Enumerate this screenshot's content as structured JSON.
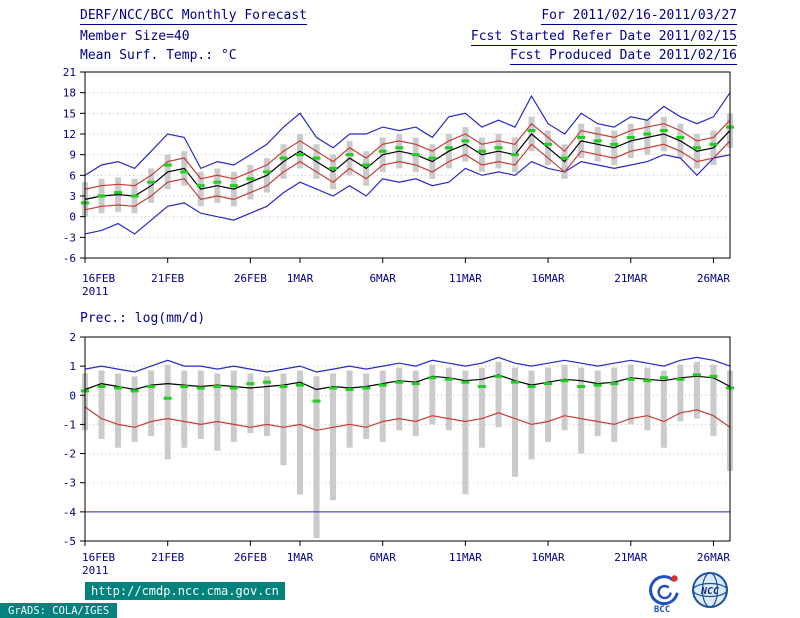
{
  "header": {
    "title": "DERF/NCC/BCC Monthly Forecast",
    "member_size": "Member Size=40",
    "variable_label": "Mean Surf. Temp.: °C",
    "forecast_period": "For 2011/02/16-2011/03/27",
    "refer_date": "Fcst Started Refer Date 2011/02/15",
    "produced_date": "Fcst Produced Date 2011/02/16"
  },
  "footer": {
    "url": "http://cmdp.ncc.cma.gov.cn",
    "grads_stamp": "GrADS: COLA/IGES",
    "logos": [
      {
        "label": "BCC"
      },
      {
        "label": "NCC"
      }
    ]
  },
  "colors": {
    "text": "#00008b",
    "frame": "#000000",
    "grid": "#bcbcbc",
    "bar": "#cbcbcb",
    "blue": "#2828c8",
    "red": "#c83c3c",
    "mean": "#000000",
    "green": "#22cc22",
    "teal": "#00827d"
  },
  "chart_data": [
    {
      "id": "temperature",
      "type": "line",
      "title": "Mean Surf. Temp.: °C",
      "ylabel": "°C",
      "ylim": [
        -6,
        21
      ],
      "yticks": [
        21,
        18,
        15,
        12,
        9,
        6,
        3,
        0,
        -3,
        -6
      ],
      "grid": true,
      "n_days": 40,
      "x_year": "2011",
      "x_tick_labels": [
        "16FEB",
        "21FEB",
        "26FEB",
        "1MAR",
        "6MAR",
        "11MAR",
        "16MAR",
        "21MAR",
        "26MAR"
      ],
      "x_tick_indices": [
        0,
        5,
        10,
        13,
        18,
        23,
        28,
        33,
        38
      ],
      "series": [
        {
          "name": "member-spread",
          "type": "bar-range",
          "color_key": "bar",
          "low": [
            0,
            0.5,
            0.7,
            0.5,
            2,
            4,
            4.5,
            1.5,
            2,
            1.5,
            2.5,
            3.5,
            5.5,
            7,
            5.5,
            4,
            6,
            4.5,
            6.5,
            7,
            6.5,
            5.5,
            7,
            8,
            6.5,
            7,
            6.5,
            9.5,
            7.5,
            5.5,
            8.5,
            8,
            7.5,
            8.5,
            9,
            9.5,
            8.5,
            7,
            7.5,
            10
          ],
          "high": [
            5,
            5.5,
            5.7,
            5.5,
            7,
            9,
            9.5,
            6.5,
            7,
            6.5,
            7.5,
            8.5,
            10.5,
            12,
            10.5,
            9,
            11,
            9.5,
            11.5,
            12,
            11.5,
            10.5,
            12,
            13,
            11.5,
            12,
            11.5,
            14.5,
            12.5,
            10.5,
            13.5,
            13,
            12.5,
            13.5,
            14,
            14.5,
            13.5,
            12,
            12.5,
            15
          ]
        },
        {
          "name": "ensemble-max",
          "type": "line",
          "color_key": "blue",
          "values": [
            6,
            7.5,
            8,
            7,
            9.5,
            12,
            11.5,
            7,
            8,
            7.5,
            9,
            10.5,
            13,
            15,
            11.5,
            10,
            12,
            12,
            13,
            12.5,
            13,
            11.5,
            14.5,
            15,
            13,
            14,
            13,
            17.5,
            13.5,
            12,
            15,
            13.5,
            13,
            14.5,
            14,
            16,
            14.5,
            13.5,
            14.5,
            18
          ]
        },
        {
          "name": "ensemble-min",
          "type": "line",
          "color_key": "blue",
          "values": [
            -2.5,
            -2,
            -1,
            -2.5,
            -0.5,
            1.5,
            2,
            0.5,
            0,
            -0.5,
            0.5,
            1.5,
            3.5,
            5,
            4,
            3,
            4.5,
            3,
            5.5,
            5,
            5.5,
            4.5,
            5,
            7,
            6,
            6.5,
            6,
            8,
            7,
            6.5,
            8,
            7.5,
            7,
            7.5,
            8,
            9,
            8.5,
            6,
            8.5,
            9
          ]
        },
        {
          "name": "ensemble-upper",
          "type": "line",
          "color_key": "red",
          "values": [
            4,
            4.5,
            4.7,
            4.5,
            6,
            8,
            8.5,
            5.5,
            6,
            5.5,
            6.5,
            7.5,
            9.5,
            11,
            9.5,
            8,
            10,
            8.5,
            10.5,
            11,
            10.5,
            9.5,
            11,
            12,
            10.5,
            11,
            10.5,
            13.5,
            11.5,
            9.5,
            12.5,
            12,
            11.5,
            12.5,
            13,
            13.5,
            12.5,
            11,
            11.5,
            14
          ]
        },
        {
          "name": "ensemble-lower",
          "type": "line",
          "color_key": "red",
          "values": [
            1,
            1.5,
            1.7,
            1.5,
            3,
            5,
            5.5,
            2.5,
            3,
            2.5,
            3.5,
            4.5,
            6.5,
            8,
            6.5,
            5,
            7,
            5.5,
            7.5,
            8,
            7.5,
            6.5,
            8,
            9,
            7.5,
            8,
            7.5,
            10.5,
            8.5,
            6.5,
            9.5,
            9,
            8.5,
            9.5,
            10,
            10.5,
            9.5,
            8,
            8.5,
            11
          ]
        },
        {
          "name": "ensemble-mean",
          "type": "line",
          "color_key": "mean",
          "values": [
            2.5,
            3,
            3.2,
            3,
            4.5,
            6.5,
            7,
            4,
            4.5,
            4,
            5,
            6,
            8,
            9.5,
            8,
            6.5,
            8.5,
            7,
            9,
            9.5,
            9,
            8,
            9.5,
            10.5,
            9,
            9.5,
            9,
            12,
            10,
            8,
            11,
            10.5,
            10,
            11,
            11.5,
            12,
            11,
            9.5,
            10,
            12.5
          ]
        },
        {
          "name": "ensemble-median-marks",
          "type": "dash",
          "color_key": "green",
          "values": [
            2,
            3,
            3.5,
            3,
            5,
            7.5,
            6.5,
            4.5,
            5,
            4.5,
            5.5,
            6.5,
            8.5,
            9,
            8.5,
            7,
            9,
            7.5,
            9.5,
            10,
            9,
            8.5,
            10,
            11,
            9.5,
            10,
            9,
            12.5,
            10.5,
            8.5,
            11.5,
            11,
            10.5,
            11.5,
            12,
            12.5,
            11.5,
            10,
            10.5,
            13
          ]
        }
      ]
    },
    {
      "id": "precipitation",
      "type": "line",
      "title": "Prec.: log(mm/d)",
      "ylabel": "log(mm/d)",
      "ylim": [
        -5,
        2
      ],
      "yticks": [
        2,
        1,
        0,
        -1,
        -2,
        -3,
        -4,
        -5
      ],
      "grid": true,
      "n_days": 40,
      "x_year": "2011",
      "x_tick_labels": [
        "16FEB",
        "21FEB",
        "26FEB",
        "1MAR",
        "6MAR",
        "11MAR",
        "16MAR",
        "21MAR",
        "26MAR"
      ],
      "x_tick_indices": [
        0,
        5,
        10,
        13,
        18,
        23,
        28,
        33,
        38
      ],
      "reflines": [
        {
          "value": -4,
          "color_key": "blue"
        }
      ],
      "series": [
        {
          "name": "member-spread",
          "type": "bar-range",
          "color_key": "bar",
          "low": [
            -1.2,
            -1.5,
            -1.8,
            -1.6,
            -1.4,
            -2.2,
            -1.8,
            -1.5,
            -1.9,
            -1.6,
            -1.3,
            -1.4,
            -2.4,
            -3.4,
            -4.9,
            -3.6,
            -1.8,
            -1.5,
            -1.6,
            -1.2,
            -1.4,
            -1,
            -1.2,
            -3.4,
            -1.8,
            -1.1,
            -2.8,
            -2.2,
            -1.6,
            -1.2,
            -2,
            -1.4,
            -1.6,
            -1,
            -1.2,
            -1.8,
            -0.9,
            -0.8,
            -1.4,
            -2.6
          ],
          "high": [
            0.75,
            0.85,
            0.75,
            0.65,
            0.85,
            1.05,
            0.85,
            0.85,
            0.75,
            0.85,
            0.75,
            0.65,
            0.75,
            0.85,
            0.65,
            0.75,
            0.85,
            0.75,
            0.85,
            0.95,
            0.85,
            1.05,
            0.95,
            0.85,
            0.95,
            1.15,
            0.95,
            0.85,
            0.95,
            1.05,
            0.95,
            0.85,
            0.95,
            1.05,
            0.95,
            0.85,
            1.05,
            1.15,
            1.05,
            0.85
          ]
        },
        {
          "name": "ensemble-max",
          "type": "line",
          "color_key": "blue",
          "values": [
            0.9,
            1,
            0.9,
            0.8,
            1,
            1.2,
            1,
            1,
            0.9,
            1,
            0.9,
            0.8,
            0.9,
            1,
            0.8,
            0.9,
            1,
            0.9,
            1,
            1.1,
            1,
            1.2,
            1.1,
            1,
            1.1,
            1.3,
            1.1,
            1,
            1.1,
            1.2,
            1.1,
            1,
            1.1,
            1.2,
            1.1,
            1,
            1.2,
            1.3,
            1.2,
            1
          ]
        },
        {
          "name": "ensemble-lower",
          "type": "line",
          "color_key": "red",
          "values": [
            -0.4,
            -0.8,
            -1,
            -1.1,
            -0.9,
            -0.8,
            -0.9,
            -1,
            -0.9,
            -1,
            -1.1,
            -1,
            -1.1,
            -1,
            -1.2,
            -1.1,
            -1,
            -1.1,
            -0.9,
            -0.8,
            -0.9,
            -0.7,
            -0.8,
            -0.9,
            -0.8,
            -0.6,
            -0.8,
            -1,
            -0.9,
            -0.7,
            -0.8,
            -0.9,
            -1,
            -0.8,
            -0.7,
            -0.9,
            -0.6,
            -0.5,
            -0.7,
            -1.1
          ]
        },
        {
          "name": "ensemble-mean",
          "type": "line",
          "color_key": "mean",
          "values": [
            0.2,
            0.4,
            0.3,
            0.2,
            0.35,
            0.4,
            0.35,
            0.3,
            0.35,
            0.3,
            0.25,
            0.3,
            0.35,
            0.45,
            0.2,
            0.3,
            0.25,
            0.3,
            0.4,
            0.5,
            0.45,
            0.65,
            0.6,
            0.5,
            0.55,
            0.7,
            0.5,
            0.35,
            0.45,
            0.55,
            0.5,
            0.4,
            0.45,
            0.6,
            0.55,
            0.5,
            0.6,
            0.65,
            0.6,
            0.3
          ]
        },
        {
          "name": "ensemble-median-marks",
          "type": "dash",
          "color_key": "green",
          "values": [
            0.15,
            0.3,
            0.25,
            0.15,
            0.3,
            -0.1,
            0.3,
            0.25,
            0.3,
            0.25,
            0.4,
            0.45,
            0.3,
            0.35,
            -0.2,
            0.25,
            0.2,
            0.25,
            0.35,
            0.45,
            0.4,
            0.6,
            0.55,
            0.45,
            0.3,
            0.65,
            0.45,
            0.3,
            0.4,
            0.5,
            0.3,
            0.35,
            0.4,
            0.55,
            0.5,
            0.6,
            0.55,
            0.7,
            0.65,
            0.25
          ]
        }
      ]
    }
  ]
}
